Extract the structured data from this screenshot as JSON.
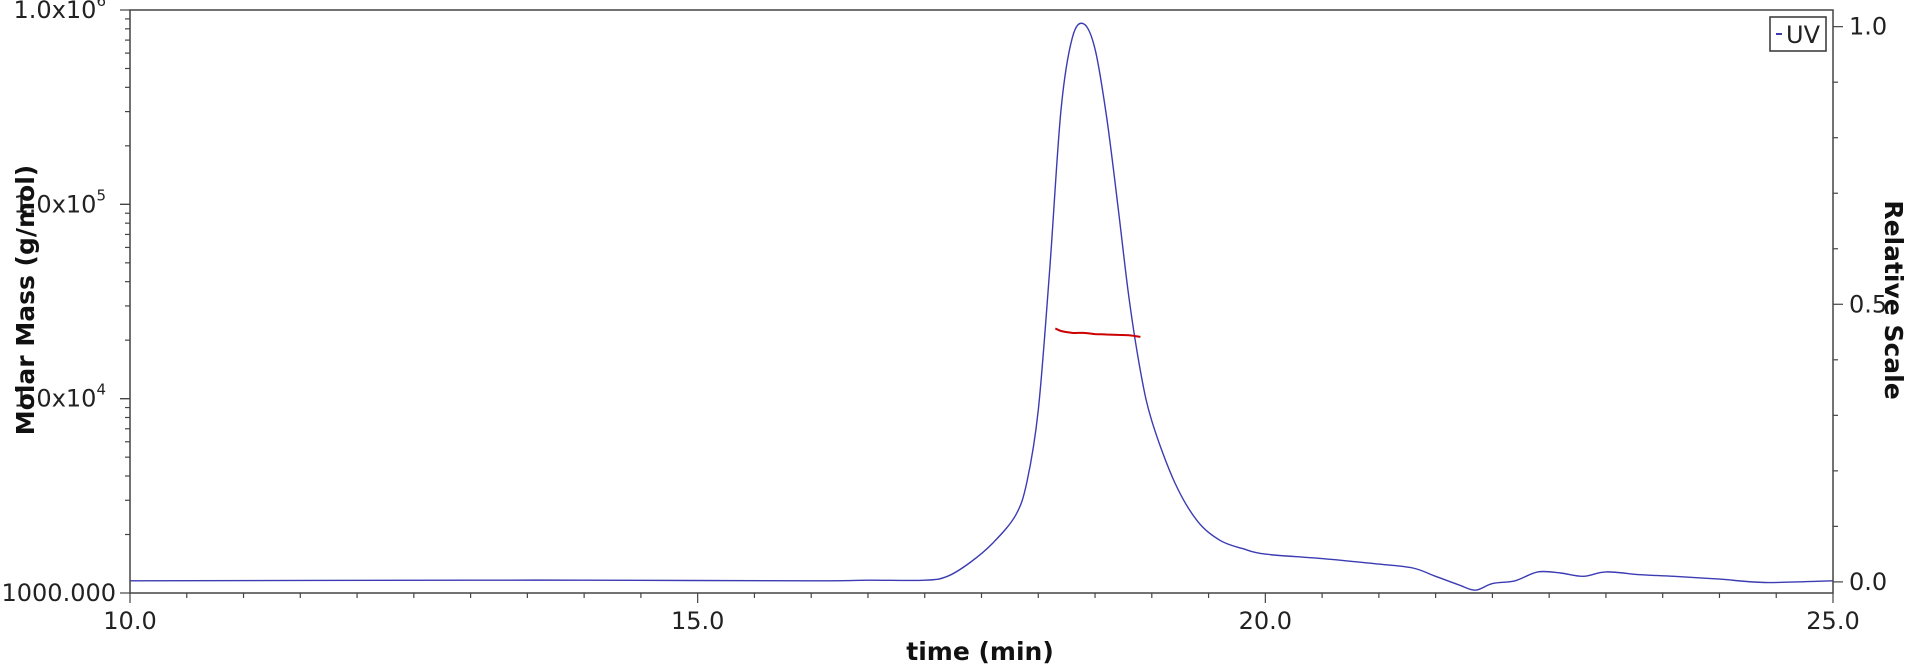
{
  "chart_data": {
    "type": "line",
    "xlabel": "time (min)",
    "ylabel_left": "Molar Mass (g/mol)",
    "ylabel_right": "Relative Scale",
    "xlim": [
      10.0,
      25.0
    ],
    "x_ticks": [
      {
        "value": 10,
        "label": "10.0"
      },
      {
        "value": 15,
        "label": "15.0"
      },
      {
        "value": 20,
        "label": "20.0"
      },
      {
        "value": 25,
        "label": "25.0"
      }
    ],
    "y_left": {
      "scale": "log",
      "range": [
        1000,
        1000000
      ],
      "ticks": [
        {
          "value": 1000,
          "label": "1000.000",
          "exp": ""
        },
        {
          "value": 10000,
          "label": "1.0x10",
          "exp": "4"
        },
        {
          "value": 100000,
          "label": "1.0x10",
          "exp": "5"
        },
        {
          "value": 1000000,
          "label": "1.0x10",
          "exp": "6"
        }
      ]
    },
    "y_right": {
      "scale": "linear",
      "range": [
        -0.02,
        1.03
      ],
      "ticks": [
        {
          "value": 0.0,
          "label": "0.0"
        },
        {
          "value": 0.5,
          "label": "0.5"
        },
        {
          "value": 1.0,
          "label": "1.0"
        }
      ]
    },
    "legend": {
      "position": "top-right",
      "entries": [
        "UV"
      ]
    },
    "series": [
      {
        "name": "UV",
        "axis": "right",
        "color": "#3b3bb3",
        "x": [
          10.0,
          13.0,
          14.0,
          16.0,
          16.5,
          17.0,
          17.2,
          17.4,
          17.6,
          17.8,
          17.9,
          18.0,
          18.1,
          18.2,
          18.3,
          18.4,
          18.5,
          18.6,
          18.7,
          18.8,
          18.9,
          19.0,
          19.2,
          19.4,
          19.6,
          19.8,
          20.0,
          20.5,
          21.0,
          21.3,
          21.5,
          21.7,
          21.85,
          22.0,
          22.2,
          22.4,
          22.6,
          22.8,
          23.0,
          23.3,
          23.6,
          24.0,
          24.4,
          25.0
        ],
        "y": [
          0.002,
          0.003,
          0.003,
          0.002,
          0.003,
          0.003,
          0.01,
          0.035,
          0.07,
          0.12,
          0.18,
          0.31,
          0.56,
          0.85,
          0.98,
          1.005,
          0.96,
          0.84,
          0.68,
          0.51,
          0.38,
          0.29,
          0.18,
          0.11,
          0.075,
          0.06,
          0.05,
          0.042,
          0.032,
          0.025,
          0.01,
          -0.005,
          -0.015,
          -0.003,
          0.002,
          0.018,
          0.016,
          0.01,
          0.018,
          0.013,
          0.01,
          0.005,
          -0.001,
          0.002
        ]
      },
      {
        "name": "Molar Mass",
        "axis": "left",
        "color": "#cc0000",
        "x": [
          18.15,
          18.2,
          18.3,
          18.4,
          18.5,
          18.6,
          18.7,
          18.8,
          18.9
        ],
        "y": [
          23000,
          22300,
          21800,
          21800,
          21500,
          21400,
          21300,
          21200,
          20800
        ]
      }
    ]
  }
}
